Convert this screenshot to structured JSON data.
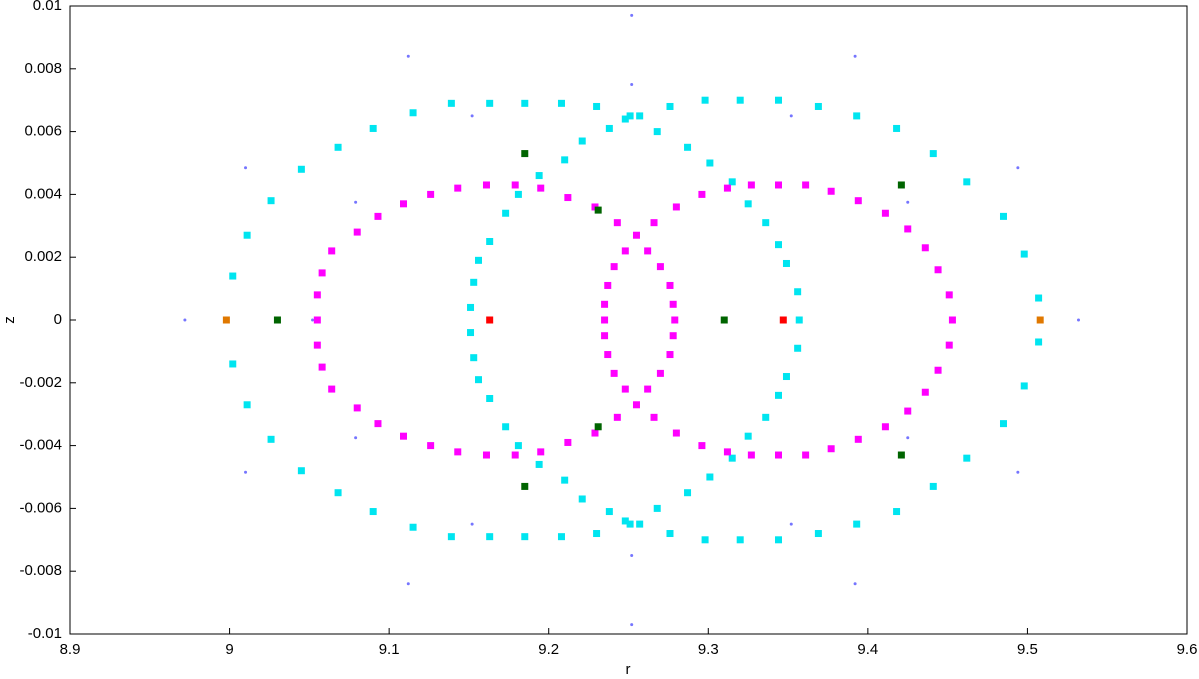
{
  "chart_data": {
    "type": "scatter",
    "xlabel": "r",
    "ylabel": "z",
    "xlim": [
      8.9,
      9.6
    ],
    "xticks": [
      8.9,
      9,
      9.1,
      9.2,
      9.3,
      9.4,
      9.5,
      9.6
    ],
    "ylim": [
      -0.01,
      0.01
    ],
    "yticks": [
      0.01,
      0.008,
      0.006,
      0.004,
      0.002,
      0,
      -0.002,
      -0.004,
      -0.006,
      -0.008,
      -0.01
    ],
    "grid": false,
    "series": [
      {
        "color": "#3b3bff",
        "marker": "dot",
        "x": [
          9.532,
          9.494,
          9.392,
          9.252,
          9.112,
          9.01,
          8.972,
          9.01,
          9.112,
          9.252,
          9.392,
          9.494,
          9.452,
          9.425,
          9.352,
          9.252,
          9.152,
          9.079,
          9.052,
          9.079,
          9.152,
          9.252,
          9.352,
          9.425
        ],
        "y": [
          0,
          0.00485,
          0.0084,
          0.0097,
          0.0084,
          0.00485,
          0,
          -0.00485,
          -0.0084,
          -0.0097,
          -0.0084,
          -0.00485,
          0,
          0.00375,
          0.0065,
          0.0075,
          0.0065,
          0.00375,
          0,
          -0.00375,
          -0.0065,
          -0.0075,
          -0.0065,
          -0.00375
        ]
      },
      {
        "color": "#00e5f0",
        "marker": "square",
        "x": [
          9.002,
          9.011,
          9.026,
          9.045,
          9.068,
          9.09,
          9.115,
          9.139,
          9.163,
          9.185,
          9.208,
          9.23,
          9.251,
          9.276,
          9.298,
          9.32,
          9.344,
          9.369,
          9.393,
          9.418,
          9.441,
          9.462,
          9.485,
          9.498,
          9.507,
          9.002,
          9.011,
          9.026,
          9.045,
          9.068,
          9.09,
          9.115,
          9.139,
          9.163,
          9.185,
          9.208,
          9.23,
          9.251,
          9.276,
          9.298,
          9.32,
          9.344,
          9.369,
          9.393,
          9.418,
          9.441,
          9.462,
          9.485,
          9.498,
          9.507,
          9.151,
          9.153,
          9.156,
          9.163,
          9.173,
          9.181,
          9.194,
          9.21,
          9.221,
          9.238,
          9.248,
          9.257,
          9.268,
          9.287,
          9.301,
          9.315,
          9.325,
          9.336,
          9.344,
          9.349,
          9.356,
          9.357,
          9.151,
          9.153,
          9.156,
          9.163,
          9.173,
          9.181,
          9.194,
          9.21,
          9.221,
          9.238,
          9.248,
          9.257,
          9.268,
          9.287,
          9.301,
          9.315,
          9.325,
          9.336,
          9.344,
          9.349,
          9.356
        ],
        "y": [
          0.0014,
          0.0027,
          0.0038,
          0.0048,
          0.0055,
          0.0061,
          0.0066,
          0.0069,
          0.0069,
          0.0069,
          0.0069,
          0.0068,
          0.0065,
          0.0068,
          0.007,
          0.007,
          0.007,
          0.0068,
          0.0065,
          0.0061,
          0.0053,
          0.0044,
          0.0033,
          0.0021,
          0.0007,
          -0.0014,
          -0.0027,
          -0.0038,
          -0.0048,
          -0.0055,
          -0.0061,
          -0.0066,
          -0.0069,
          -0.0069,
          -0.0069,
          -0.0069,
          -0.0068,
          -0.0065,
          -0.0068,
          -0.007,
          -0.007,
          -0.007,
          -0.0068,
          -0.0065,
          -0.0061,
          -0.0053,
          -0.0044,
          -0.0033,
          -0.0021,
          -0.0007,
          0.0004,
          0.0012,
          0.0019,
          0.0025,
          0.0034,
          0.004,
          0.0046,
          0.0051,
          0.0057,
          0.0061,
          0.0064,
          0.0065,
          0.006,
          0.0055,
          0.005,
          0.0044,
          0.0037,
          0.0031,
          0.0024,
          0.0018,
          0.0009,
          0,
          -0.0004,
          -0.0012,
          -0.0019,
          -0.0025,
          -0.0034,
          -0.004,
          -0.0046,
          -0.0051,
          -0.0057,
          -0.0061,
          -0.0064,
          -0.0065,
          -0.006,
          -0.0055,
          -0.005,
          -0.0044,
          -0.0037,
          -0.0031,
          -0.0024,
          -0.0018,
          -0.0009
        ]
      },
      {
        "color": "#ff00ff",
        "marker": "square",
        "x": [
          9.055,
          9.058,
          9.064,
          9.08,
          9.093,
          9.109,
          9.126,
          9.143,
          9.161,
          9.179,
          9.195,
          9.212,
          9.229,
          9.243,
          9.255,
          9.266,
          9.28,
          9.296,
          9.312,
          9.327,
          9.344,
          9.361,
          9.377,
          9.394,
          9.411,
          9.425,
          9.436,
          9.444,
          9.451,
          9.453,
          9.055,
          9.055,
          9.058,
          9.064,
          9.08,
          9.093,
          9.109,
          9.126,
          9.143,
          9.161,
          9.179,
          9.195,
          9.212,
          9.229,
          9.243,
          9.255,
          9.266,
          9.28,
          9.296,
          9.312,
          9.327,
          9.344,
          9.361,
          9.377,
          9.394,
          9.411,
          9.425,
          9.436,
          9.444,
          9.451,
          9.248,
          9.241,
          9.237,
          9.235,
          9.235,
          9.262,
          9.27,
          9.276,
          9.278,
          9.279,
          9.248,
          9.241,
          9.237,
          9.235,
          9.262,
          9.27,
          9.276,
          9.278
        ],
        "y": [
          0.0008,
          0.0015,
          0.0022,
          0.0028,
          0.0033,
          0.0037,
          0.004,
          0.0042,
          0.0043,
          0.0043,
          0.0042,
          0.0039,
          0.0036,
          0.0031,
          0.0027,
          0.0031,
          0.0036,
          0.004,
          0.0042,
          0.0043,
          0.0043,
          0.0043,
          0.0041,
          0.0038,
          0.0034,
          0.0029,
          0.0023,
          0.0016,
          0.0008,
          0,
          0,
          -0.0008,
          -0.0015,
          -0.0022,
          -0.0028,
          -0.0033,
          -0.0037,
          -0.004,
          -0.0042,
          -0.0043,
          -0.0043,
          -0.0042,
          -0.0039,
          -0.0036,
          -0.0031,
          -0.0027,
          -0.0031,
          -0.0036,
          -0.004,
          -0.0042,
          -0.0043,
          -0.0043,
          -0.0043,
          -0.0041,
          -0.0038,
          -0.0034,
          -0.0029,
          -0.0023,
          -0.0016,
          -0.0008,
          0.0022,
          0.0017,
          0.0011,
          0.0005,
          0,
          0.0022,
          0.0017,
          0.0011,
          0.0005,
          0,
          -0.0022,
          -0.0017,
          -0.0011,
          -0.0005,
          -0.0022,
          -0.0017,
          -0.0011,
          -0.0005
        ]
      },
      {
        "color": "#006400",
        "marker": "square",
        "x": [
          9.03,
          9.31,
          9.185,
          9.185,
          9.231,
          9.231,
          9.421,
          9.421
        ],
        "y": [
          0,
          0,
          0.0053,
          -0.0053,
          0.0035,
          -0.0034,
          0.0043,
          -0.0043
        ]
      },
      {
        "color": "#ff0000",
        "marker": "square",
        "x": [
          9.163,
          9.347
        ],
        "y": [
          0,
          0
        ]
      },
      {
        "color": "#e07800",
        "marker": "square",
        "x": [
          8.998,
          9.508
        ],
        "y": [
          0,
          0
        ]
      }
    ]
  }
}
